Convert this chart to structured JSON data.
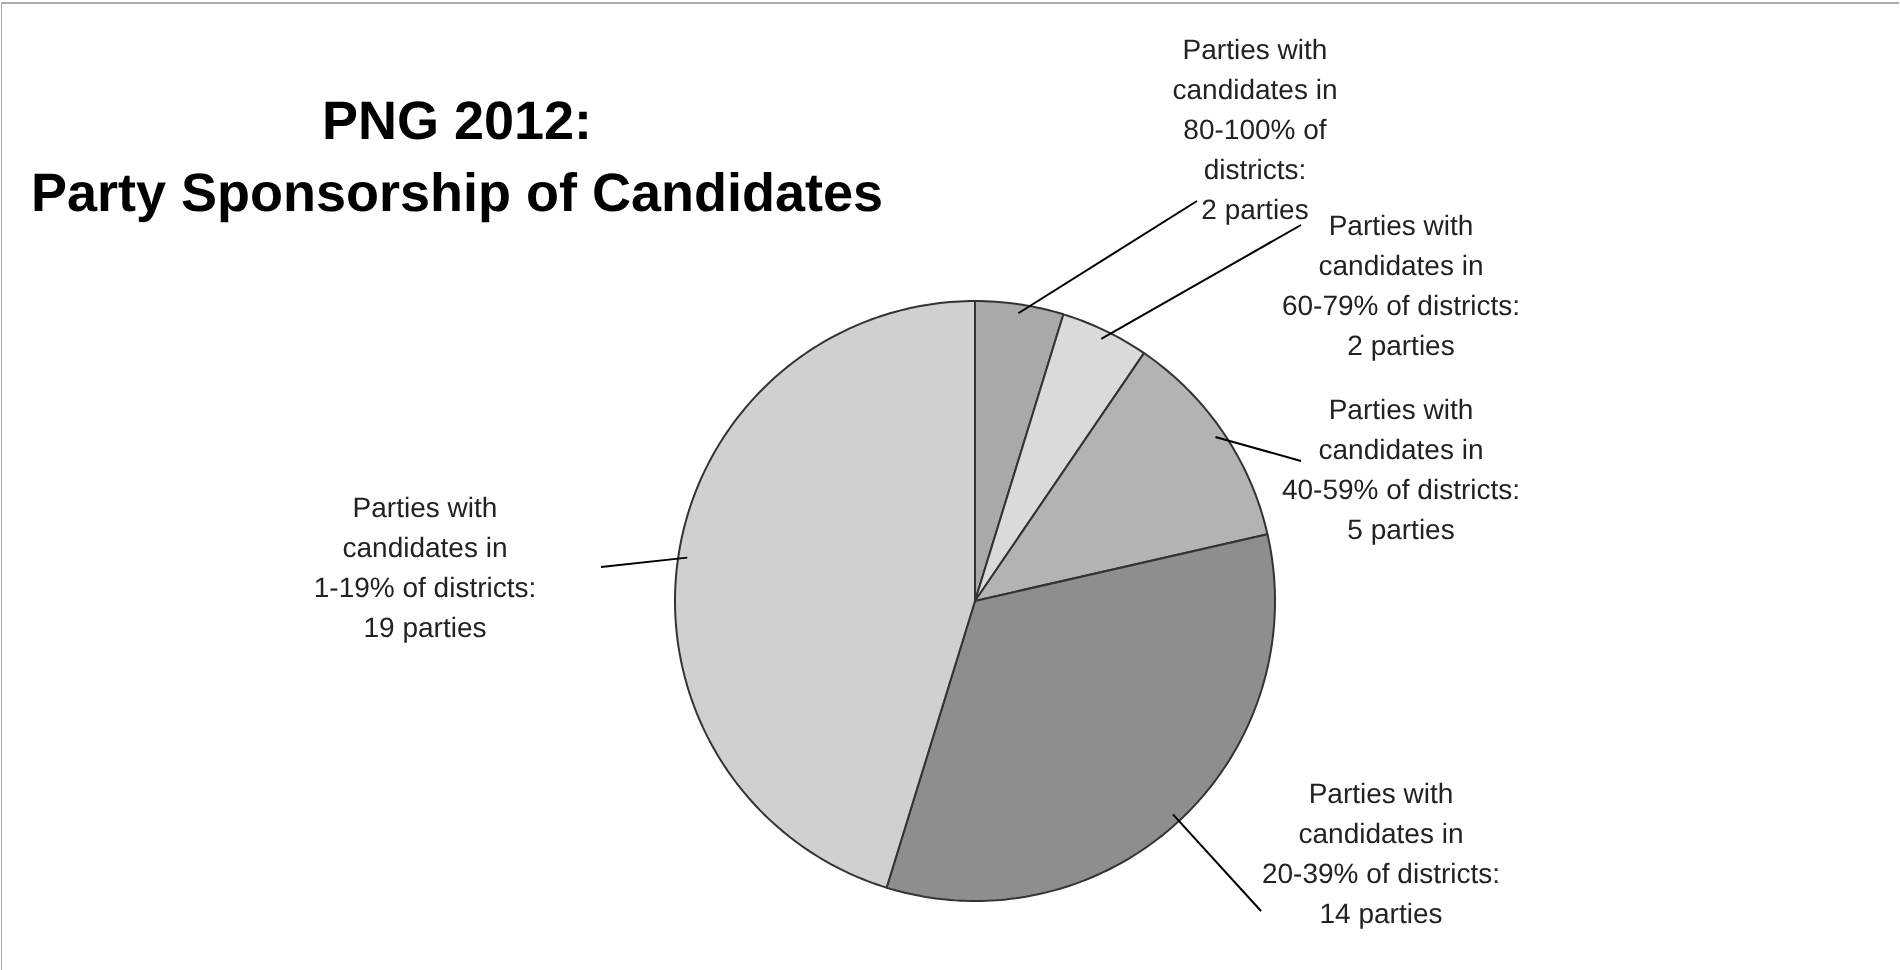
{
  "chart_data": {
    "type": "pie",
    "title": "PNG 2012:\nParty Sponsorship of Candidates",
    "categories": [
      "Parties with candidates in 80-100% of districts: 2 parties",
      "Parties with candidates in 60-79% of districts: 2 parties",
      "Parties with candidates in 40-59% of districts: 5 parties",
      "Parties with candidates in 20-39% of districts: 14 parties",
      "Parties with candidates in 1-19% of districts: 19 parties"
    ],
    "values": [
      2,
      2,
      5,
      14,
      19
    ],
    "colors": [
      "#a9a9a9",
      "#dadada",
      "#b3b3b3",
      "#8e8e8e",
      "#d0d0d0"
    ]
  }
}
